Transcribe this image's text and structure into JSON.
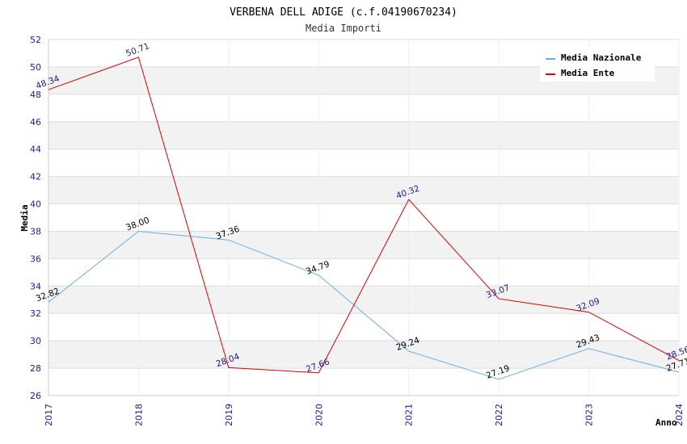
{
  "chart_data": {
    "type": "line",
    "title": "VERBENA DELL ADIGE (c.f.04190670234)",
    "subtitle": "Media Importi",
    "xlabel": "Anno",
    "ylabel": "Media",
    "categories": [
      "2017",
      "2018",
      "2019",
      "2020",
      "2021",
      "2022",
      "2023",
      "2024"
    ],
    "ylim": [
      26,
      52
    ],
    "yticks": [
      26,
      28,
      30,
      32,
      34,
      36,
      38,
      40,
      42,
      44,
      46,
      48,
      50,
      52
    ],
    "ytick_labels": [
      "26",
      "28",
      "30",
      "32",
      "34",
      "36",
      "38",
      "40",
      "42",
      "44",
      "46",
      "48",
      "50",
      "52"
    ],
    "grid": true,
    "legend_position": "top-right",
    "series": [
      {
        "name": "Media Nazionale",
        "color": "#6aaee8",
        "label_color": "#000000",
        "values": [
          32.82,
          38.0,
          37.36,
          34.79,
          29.24,
          27.19,
          29.43,
          27.71
        ],
        "labels": [
          "32.82",
          "38.00",
          "37.36",
          "34.79",
          "29.24",
          "27.19",
          "29.43",
          "27.71"
        ]
      },
      {
        "name": "Media Ente",
        "color": "#e00000",
        "label_color": "#1a1a8c",
        "values": [
          48.34,
          50.71,
          28.04,
          27.66,
          40.32,
          33.07,
          32.09,
          28.56
        ],
        "labels": [
          "48.34",
          "50.71",
          "28.04",
          "27.66",
          "40.32",
          "33.07",
          "32.09",
          "28.56"
        ]
      }
    ]
  }
}
